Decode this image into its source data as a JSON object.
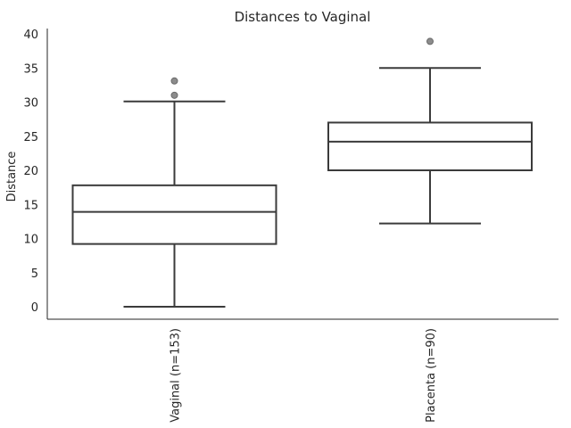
{
  "chart_data": {
    "type": "box",
    "title": "Distances to Vaginal",
    "ylabel": "Distance",
    "xlabel": "",
    "ylim": [
      -2,
      41
    ],
    "yticks": [
      0,
      5,
      10,
      15,
      20,
      25,
      30,
      35,
      40
    ],
    "grid": false,
    "categories": [
      "Vaginal (n=153)",
      "Placenta (n=90)"
    ],
    "boxes": [
      {
        "category": "Vaginal (n=153)",
        "whisker_low": 0,
        "q1": 9.2,
        "median": 13.9,
        "q3": 17.8,
        "whisker_high": 30.1,
        "outliers": [
          31.0,
          33.1
        ]
      },
      {
        "category": "Placenta (n=90)",
        "whisker_low": 12.2,
        "q1": 20.0,
        "median": 24.2,
        "q3": 27.0,
        "whisker_high": 35.0,
        "outliers": [
          38.9
        ]
      }
    ],
    "colors": {
      "box_line": "#3b3b3b",
      "axis": "#262626",
      "flier": "#8c8c8c"
    }
  }
}
